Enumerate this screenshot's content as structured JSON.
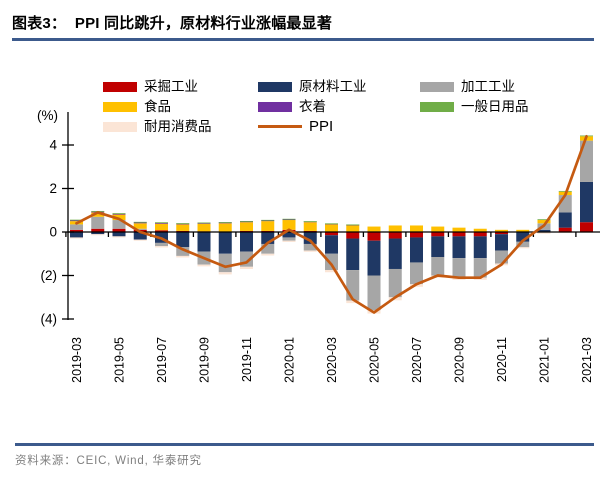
{
  "header": {
    "title": "图表3：  PPI 同比跳升，原材料行业涨幅最显著"
  },
  "footer": {
    "source": "资料来源：CEIC, Wind,  华泰研究"
  },
  "colors": {
    "rule_blue": "#3C5A8C",
    "axis_black": "#000000",
    "source_gray": "#7F7F7F"
  },
  "chart_data": {
    "type": "bar",
    "subtype": "stacked-bars-with-line-overlay",
    "title": "",
    "xlabel": "",
    "ylabel": "(%)",
    "yticks": [
      4,
      2,
      0,
      -2,
      -4
    ],
    "ytick_labels": [
      "4",
      "2",
      "0",
      "(2)",
      "(4)"
    ],
    "ylim": [
      -4.1,
      5.5
    ],
    "grid": "off",
    "legend_position": "top",
    "legend_order": [
      "采掘工业",
      "原材料工业",
      "加工工业",
      "食品",
      "衣着",
      "一般日用品",
      "耐用消费品",
      "PPI"
    ],
    "categories": [
      "2019-03",
      "2019-04",
      "2019-05",
      "2019-06",
      "2019-07",
      "2019-08",
      "2019-09",
      "2019-10",
      "2019-11",
      "2019-12",
      "2020-01",
      "2020-02",
      "2020-03",
      "2020-04",
      "2020-05",
      "2020-06",
      "2020-07",
      "2020-08",
      "2020-09",
      "2020-10",
      "2020-11",
      "2020-12",
      "2021-01",
      "2021-02",
      "2021-03"
    ],
    "xtick_labels": [
      "2019-03",
      "2019-05",
      "2019-07",
      "2019-09",
      "2019-11",
      "2020-01",
      "2020-03",
      "2020-05",
      "2020-07",
      "2020-09",
      "2020-11",
      "2021-01",
      "2021-03"
    ],
    "series": [
      {
        "name": "采掘工业",
        "color": "#C00000",
        "values": [
          0.1,
          0.15,
          0.15,
          0.1,
          0.08,
          0.05,
          0.03,
          0.0,
          0.05,
          0.05,
          0.1,
          0.05,
          -0.15,
          -0.3,
          -0.4,
          -0.3,
          -0.25,
          -0.2,
          -0.2,
          -0.2,
          -0.1,
          0.0,
          0.02,
          0.2,
          0.45
        ]
      },
      {
        "name": "原材料工业",
        "color": "#1F3864",
        "values": [
          -0.25,
          -0.1,
          -0.2,
          -0.35,
          -0.5,
          -0.7,
          -0.9,
          -1.0,
          -0.9,
          -0.55,
          -0.25,
          -0.55,
          -0.85,
          -1.45,
          -1.6,
          -1.4,
          -1.15,
          -0.95,
          -1.0,
          -1.0,
          -0.75,
          -0.45,
          0.08,
          0.7,
          1.85
        ]
      },
      {
        "name": "加工工业",
        "color": "#A6A6A6",
        "values": [
          0.25,
          0.55,
          0.4,
          0.05,
          -0.15,
          -0.4,
          -0.6,
          -0.85,
          -0.7,
          -0.45,
          -0.15,
          -0.3,
          -0.75,
          -1.4,
          -1.6,
          -1.3,
          -1.0,
          -0.85,
          -0.9,
          -0.9,
          -0.6,
          -0.25,
          0.3,
          0.8,
          1.9
        ]
      },
      {
        "name": "食品",
        "color": "#FFC000",
        "values": [
          0.15,
          0.2,
          0.25,
          0.25,
          0.3,
          0.3,
          0.35,
          0.4,
          0.4,
          0.45,
          0.45,
          0.4,
          0.35,
          0.3,
          0.25,
          0.3,
          0.3,
          0.25,
          0.2,
          0.15,
          0.1,
          0.1,
          0.15,
          0.15,
          0.2
        ]
      },
      {
        "name": "衣着",
        "color": "#7030A0",
        "values": [
          0.03,
          0.03,
          0.03,
          0.03,
          0.03,
          0.02,
          0.02,
          0.02,
          0.02,
          0.02,
          0.02,
          0.01,
          0.01,
          0.01,
          0.0,
          0.0,
          0.0,
          0.0,
          0.0,
          0.0,
          0.0,
          0.0,
          0.0,
          0.0,
          0.0
        ]
      },
      {
        "name": "一般日用品",
        "color": "#70AD47",
        "values": [
          0.02,
          0.02,
          0.02,
          0.02,
          0.02,
          0.02,
          0.02,
          0.02,
          0.02,
          0.02,
          0.02,
          0.01,
          0.01,
          0.01,
          0.0,
          0.0,
          0.0,
          0.0,
          0.0,
          0.0,
          0.0,
          0.0,
          0.02,
          0.02,
          0.02
        ]
      },
      {
        "name": "耐用消费品",
        "color": "#FBE5D6",
        "values": [
          -0.05,
          -0.05,
          -0.05,
          -0.05,
          -0.06,
          -0.07,
          -0.08,
          -0.1,
          -0.1,
          -0.08,
          -0.06,
          -0.06,
          -0.1,
          -0.12,
          -0.15,
          -0.14,
          -0.12,
          -0.1,
          -0.1,
          -0.1,
          -0.08,
          -0.05,
          -0.08,
          -0.05,
          -0.02
        ]
      }
    ],
    "line_series": {
      "name": "PPI",
      "color": "#C55A11",
      "values": [
        0.4,
        0.9,
        0.6,
        0.0,
        -0.3,
        -0.8,
        -1.2,
        -1.6,
        -1.4,
        -0.5,
        0.1,
        -0.4,
        -1.5,
        -3.1,
        -3.7,
        -3.0,
        -2.4,
        -2.0,
        -2.1,
        -2.1,
        -1.5,
        -0.4,
        0.3,
        1.7,
        4.4
      ]
    }
  }
}
